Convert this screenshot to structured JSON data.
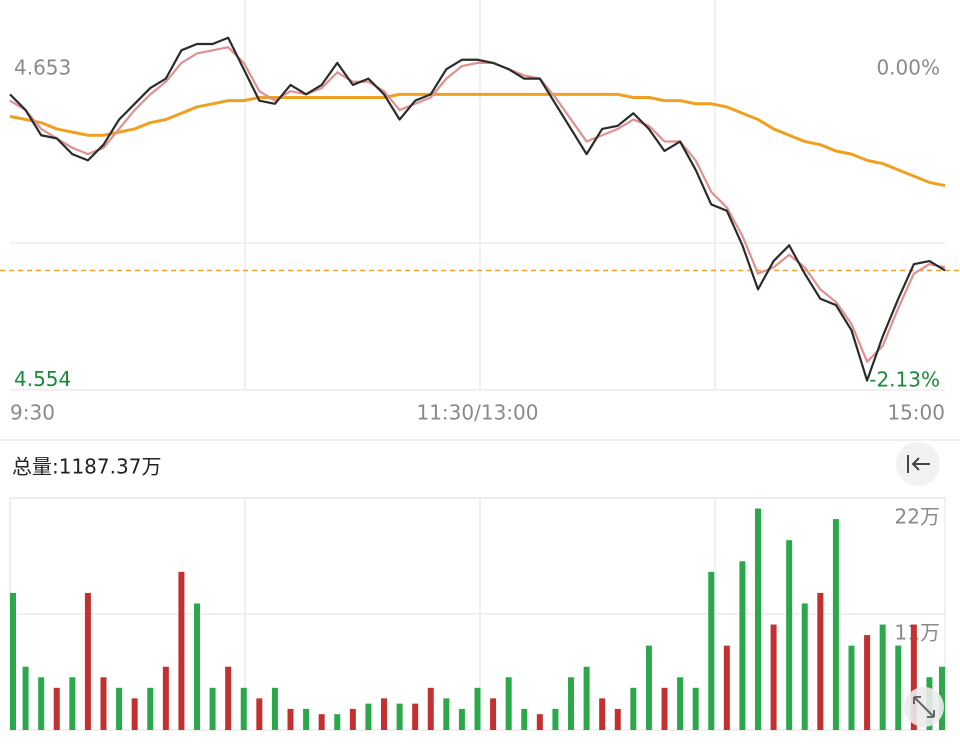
{
  "chart_data": [
    {
      "type": "line",
      "x": [
        0,
        4,
        8,
        12,
        16,
        20,
        24,
        28,
        32,
        36,
        40,
        44,
        48,
        52,
        56,
        60,
        64,
        68,
        72,
        76,
        80,
        84,
        88,
        92,
        96,
        100,
        104,
        108,
        112,
        116,
        120,
        124,
        128,
        132,
        136,
        140,
        144,
        148,
        152,
        156,
        160,
        164,
        168,
        172,
        176,
        180,
        184,
        188,
        192,
        196,
        200,
        204,
        208,
        212,
        216,
        220,
        224,
        228,
        232,
        236,
        240
      ],
      "xlim": [
        0,
        240
      ],
      "xticks": [
        {
          "value": 0,
          "label": "9:30"
        },
        {
          "value": 120,
          "label": "11:30/13:00"
        },
        {
          "value": 240,
          "label": "15:00"
        }
      ],
      "ylim": [
        4.551,
        4.675
      ],
      "yticks": [
        4.653,
        4.554
      ],
      "y2lim": [
        -2.19,
        0.47
      ],
      "y2ticks": [
        {
          "value": 0,
          "label": "0.00%"
        },
        {
          "value": -2.13,
          "label": "-2.13%"
        }
      ],
      "reference_line": {
        "value": 4.589,
        "color": "#f0a030"
      },
      "series": [
        {
          "color": "#f0a020",
          "values": [
            4.638,
            4.637,
            4.636,
            4.634,
            4.633,
            4.632,
            4.632,
            4.633,
            4.634,
            4.636,
            4.637,
            4.639,
            4.641,
            4.642,
            4.643,
            4.643,
            4.644,
            4.644,
            4.644,
            4.644,
            4.644,
            4.644,
            4.644,
            4.644,
            4.644,
            4.645,
            4.645,
            4.645,
            4.645,
            4.645,
            4.645,
            4.645,
            4.645,
            4.645,
            4.645,
            4.645,
            4.645,
            4.645,
            4.645,
            4.645,
            4.644,
            4.644,
            4.643,
            4.643,
            4.642,
            4.642,
            4.641,
            4.639,
            4.637,
            4.634,
            4.632,
            4.63,
            4.629,
            4.627,
            4.626,
            4.624,
            4.623,
            4.621,
            4.619,
            4.617,
            4.616
          ]
        },
        {
          "color": "#e09090",
          "values": [
            4.643,
            4.64,
            4.634,
            4.631,
            4.628,
            4.626,
            4.628,
            4.634,
            4.64,
            4.645,
            4.649,
            4.655,
            4.658,
            4.659,
            4.66,
            4.655,
            4.646,
            4.643,
            4.646,
            4.645,
            4.647,
            4.652,
            4.649,
            4.649,
            4.646,
            4.64,
            4.642,
            4.644,
            4.65,
            4.654,
            4.655,
            4.655,
            4.653,
            4.651,
            4.65,
            4.644,
            4.637,
            4.63,
            4.632,
            4.634,
            4.637,
            4.635,
            4.63,
            4.63,
            4.624,
            4.614,
            4.609,
            4.6,
            4.588,
            4.59,
            4.594,
            4.59,
            4.583,
            4.579,
            4.572,
            4.56,
            4.565,
            4.577,
            4.588,
            4.591,
            4.59
          ]
        },
        {
          "color": "#2b2b2b",
          "values": [
            4.645,
            4.64,
            4.632,
            4.631,
            4.626,
            4.624,
            4.629,
            4.637,
            4.642,
            4.647,
            4.65,
            4.659,
            4.661,
            4.661,
            4.663,
            4.653,
            4.643,
            4.642,
            4.648,
            4.645,
            4.648,
            4.655,
            4.648,
            4.65,
            4.645,
            4.637,
            4.643,
            4.645,
            4.653,
            4.656,
            4.656,
            4.655,
            4.653,
            4.65,
            4.65,
            4.642,
            4.634,
            4.626,
            4.634,
            4.635,
            4.639,
            4.634,
            4.627,
            4.63,
            4.621,
            4.61,
            4.608,
            4.597,
            4.583,
            4.592,
            4.597,
            4.588,
            4.58,
            4.578,
            4.57,
            4.554,
            4.568,
            4.58,
            4.591,
            4.592,
            4.589
          ]
        }
      ]
    },
    {
      "type": "bar",
      "title": "总量:1187.37万",
      "x": [
        0,
        4,
        8,
        12,
        16,
        20,
        24,
        28,
        32,
        36,
        40,
        44,
        48,
        52,
        56,
        60,
        64,
        68,
        72,
        76,
        80,
        84,
        88,
        92,
        96,
        100,
        104,
        108,
        112,
        116,
        120,
        124,
        128,
        132,
        136,
        140,
        144,
        148,
        152,
        156,
        160,
        164,
        168,
        172,
        176,
        180,
        184,
        188,
        192,
        196,
        200,
        204,
        208,
        212,
        216,
        220,
        224,
        228,
        232,
        236,
        240
      ],
      "xlim": [
        0,
        240
      ],
      "ylim": [
        0,
        22
      ],
      "yticks": [
        {
          "value": 22,
          "label": "22万"
        },
        {
          "value": 11,
          "label": "11万"
        }
      ],
      "values": [
        13,
        6,
        5,
        4,
        5,
        13,
        5,
        4,
        3,
        4,
        6,
        15,
        12,
        4,
        6,
        4,
        3,
        4,
        2,
        2,
        1.5,
        1.5,
        2,
        2.5,
        3,
        2.5,
        2.5,
        4,
        3,
        2,
        4,
        3,
        5,
        2,
        1.5,
        2,
        5,
        6,
        3,
        2,
        4,
        8,
        4,
        5,
        4,
        15,
        8,
        16,
        21,
        10,
        18,
        12,
        13,
        20,
        8,
        9,
        10,
        8,
        10,
        5,
        6
      ],
      "colors": [
        "#2aa84a",
        "#2aa84a",
        "#2aa84a",
        "#c23030",
        "#2aa84a",
        "#c23030",
        "#c23030",
        "#2aa84a",
        "#c23030",
        "#2aa84a",
        "#c23030",
        "#c23030",
        "#2aa84a",
        "#2aa84a",
        "#c23030",
        "#2aa84a",
        "#c23030",
        "#2aa84a",
        "#c23030",
        "#2aa84a",
        "#c23030",
        "#2aa84a",
        "#c23030",
        "#2aa84a",
        "#c23030",
        "#2aa84a",
        "#c23030",
        "#c23030",
        "#2aa84a",
        "#2aa84a",
        "#2aa84a",
        "#c23030",
        "#2aa84a",
        "#2aa84a",
        "#c23030",
        "#2aa84a",
        "#2aa84a",
        "#2aa84a",
        "#c23030",
        "#c23030",
        "#2aa84a",
        "#2aa84a",
        "#c23030",
        "#2aa84a",
        "#2aa84a",
        "#2aa84a",
        "#c23030",
        "#2aa84a",
        "#2aa84a",
        "#c23030",
        "#2aa84a",
        "#2aa84a",
        "#c23030",
        "#2aa84a",
        "#2aa84a",
        "#c23030",
        "#2aa84a",
        "#2aa84a",
        "#c23030",
        "#2aa84a",
        "#2aa84a"
      ]
    }
  ]
}
